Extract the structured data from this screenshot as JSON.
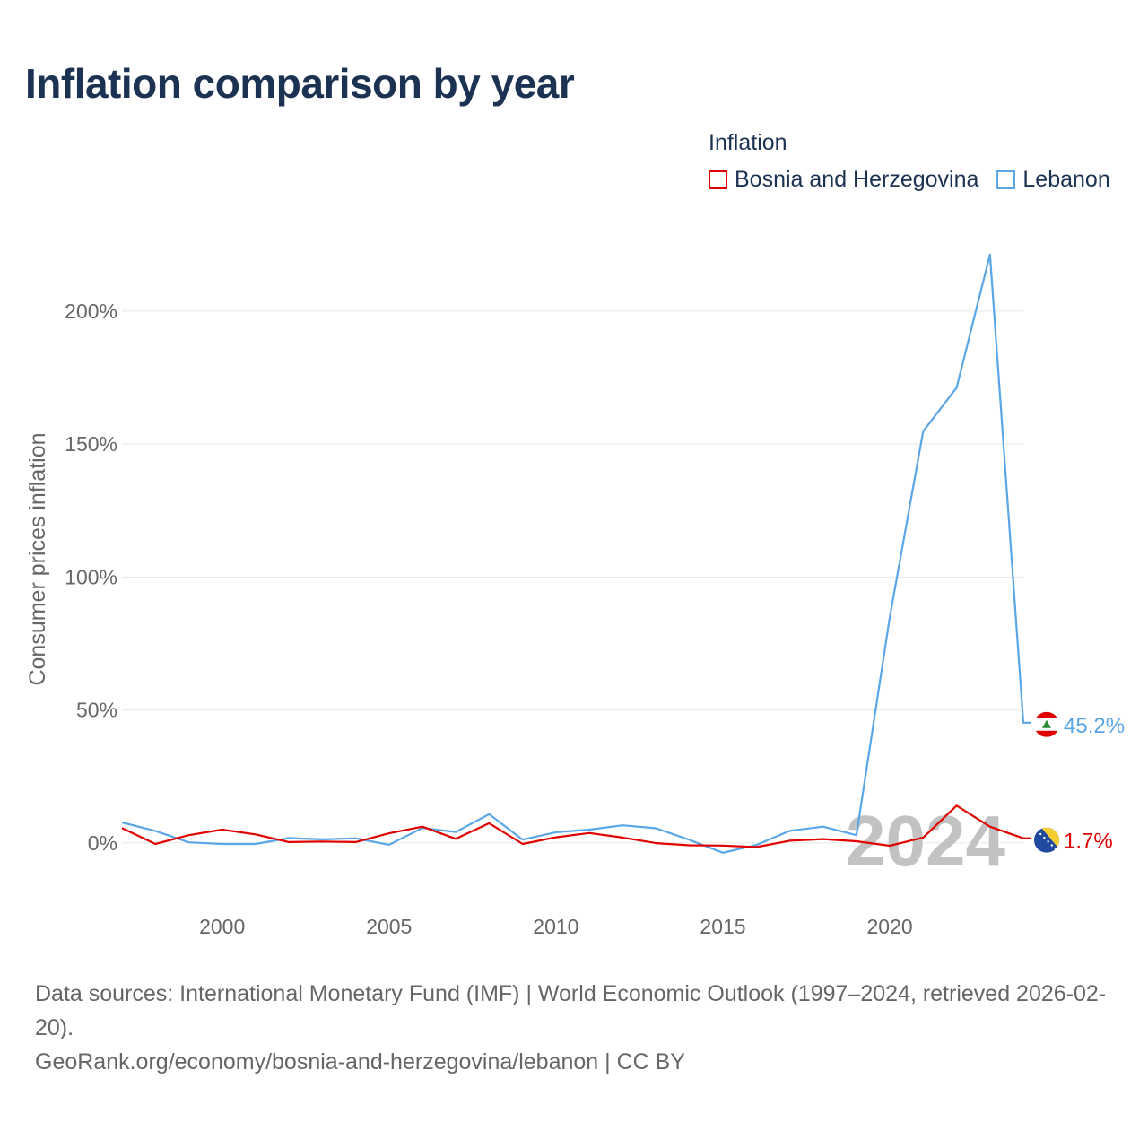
{
  "title": "Inflation comparison by year",
  "legend": {
    "title": "Inflation",
    "items": [
      {
        "label": "Bosnia and Herzegovina",
        "color": "#e00000"
      },
      {
        "label": "Lebanon",
        "color": "#5aa6e6"
      }
    ]
  },
  "chart_data": {
    "type": "line",
    "title": "Inflation comparison by year",
    "xlabel": "",
    "ylabel": "Consumer prices inflation",
    "xlim": [
      1997,
      2024
    ],
    "ylim": [
      -22,
      230
    ],
    "x_ticks": [
      2000,
      2005,
      2010,
      2015,
      2020
    ],
    "y_ticks": [
      0,
      50,
      100,
      150,
      200
    ],
    "y_tick_labels": [
      "0%",
      "50%",
      "100%",
      "150%",
      "200%"
    ],
    "grid": true,
    "year_watermark": "2024",
    "x": [
      1997,
      1998,
      1999,
      2000,
      2001,
      2002,
      2003,
      2004,
      2005,
      2006,
      2007,
      2008,
      2009,
      2010,
      2011,
      2012,
      2013,
      2014,
      2015,
      2016,
      2017,
      2018,
      2019,
      2020,
      2021,
      2022,
      2023,
      2024
    ],
    "series": [
      {
        "name": "Bosnia and Herzegovina",
        "color": "#e00000",
        "end_label": "1.7%",
        "values": [
          5.6,
          -0.4,
          2.9,
          5.0,
          3.2,
          0.3,
          0.5,
          0.3,
          3.6,
          6.1,
          1.5,
          7.4,
          -0.4,
          2.1,
          3.7,
          2.0,
          -0.1,
          -0.9,
          -1.0,
          -1.6,
          0.8,
          1.4,
          0.6,
          -1.1,
          2.0,
          14.0,
          6.1,
          1.7
        ]
      },
      {
        "name": "Lebanon",
        "color": "#5aa6e6",
        "end_label": "45.2%",
        "values": [
          7.7,
          4.5,
          0.2,
          -0.4,
          -0.4,
          1.8,
          1.3,
          1.7,
          -0.7,
          5.6,
          4.1,
          10.8,
          1.2,
          4.0,
          5.0,
          6.6,
          5.5,
          1.1,
          -3.7,
          -0.8,
          4.5,
          6.1,
          2.9,
          84.9,
          154.8,
          171.2,
          221.3,
          45.2
        ]
      }
    ]
  },
  "flags": {
    "lebanon": {
      "name": "lebanon-flag-icon",
      "colors": [
        "#e00000",
        "#ffffff",
        "#2a8a3a"
      ]
    },
    "bosnia": {
      "name": "bosnia-flag-icon",
      "colors": [
        "#1f4aa0",
        "#f5cd30",
        "#ffffff"
      ]
    }
  },
  "source": {
    "line1": "Data sources: International Monetary Fund (IMF) | World Economic Outlook (1997–2024, retrieved 2026-02-20).",
    "line2": "GeoRank.org/economy/bosnia-and-herzegovina/lebanon | CC BY"
  }
}
